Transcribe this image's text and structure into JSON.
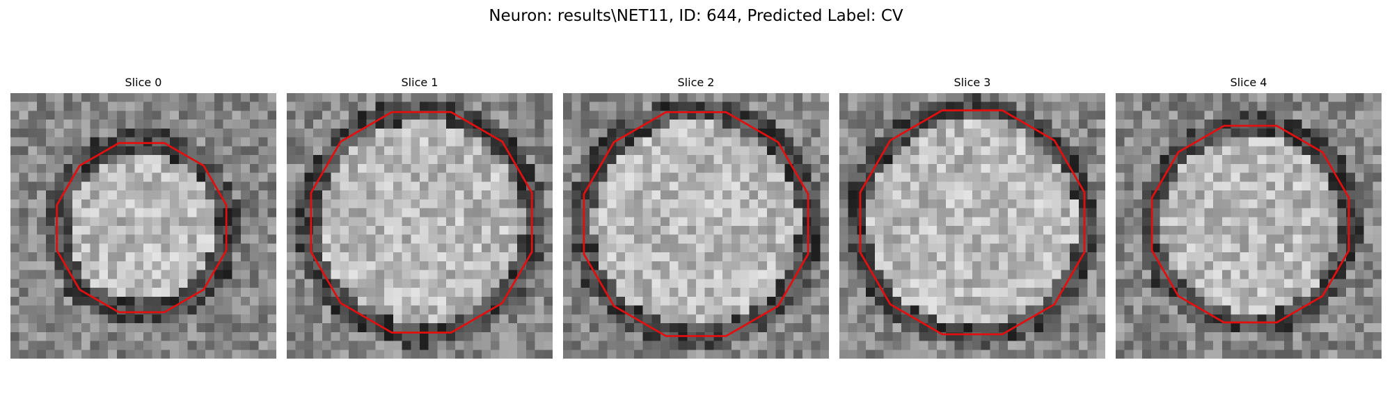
{
  "figure": {
    "title": "Neuron: results\\NET11, ID: 644, Predicted Label: CV"
  },
  "panels": [
    {
      "title": "Slice 0"
    },
    {
      "title": "Slice 1"
    },
    {
      "title": "Slice 2"
    },
    {
      "title": "Slice 3"
    },
    {
      "title": "Slice 4"
    }
  ],
  "colors": {
    "contour": "#e01010",
    "background": "#ffffff"
  }
}
